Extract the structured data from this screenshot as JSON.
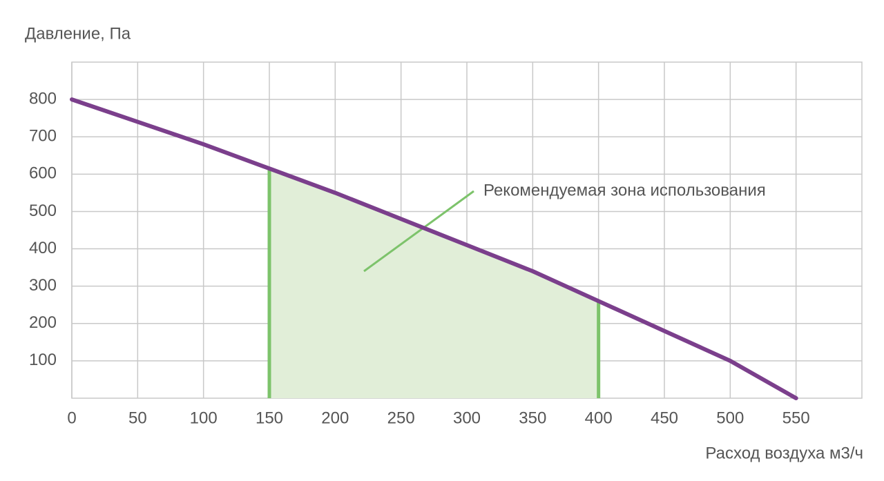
{
  "chart_data": {
    "type": "line",
    "y_label": "Давление, Па",
    "x_label": "Расход воздуха м3/ч",
    "x": [
      0,
      50,
      100,
      150,
      200,
      250,
      300,
      350,
      400,
      450,
      500,
      550
    ],
    "series": [
      {
        "color": "#7b3f8c",
        "values": [
          800,
          740,
          680,
          615,
          550,
          480,
          410,
          340,
          260,
          180,
          100,
          0
        ]
      }
    ],
    "zone": {
      "x": [
        150,
        400
      ],
      "label": "Рекомендуемая зона использования",
      "color": "#7dc36b",
      "fill": "#e1eed8"
    },
    "xlim": [
      0,
      600
    ],
    "xticks": [
      0,
      50,
      100,
      150,
      200,
      250,
      300,
      350,
      400,
      450,
      500,
      550
    ],
    "ylim": [
      0,
      900
    ],
    "yticks": [
      100,
      200,
      300,
      400,
      500,
      600,
      700,
      800
    ],
    "grid": true
  }
}
